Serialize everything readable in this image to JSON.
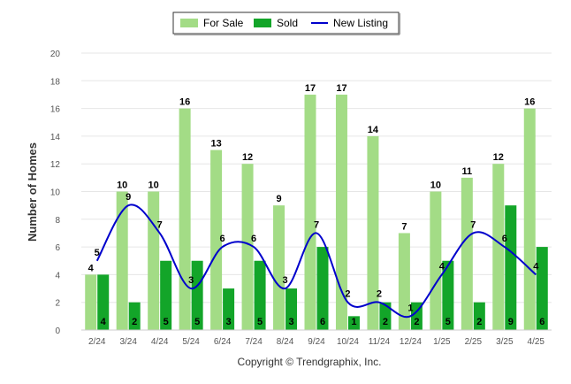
{
  "chart_data": {
    "type": "bar",
    "categories": [
      "2/24",
      "3/24",
      "4/24",
      "5/24",
      "6/24",
      "7/24",
      "8/24",
      "9/24",
      "10/24",
      "11/24",
      "12/24",
      "1/25",
      "2/25",
      "3/25",
      "4/25"
    ],
    "series": [
      {
        "name": "For Sale",
        "kind": "bar",
        "color": "#a3dc86",
        "values": [
          4,
          10,
          10,
          16,
          13,
          12,
          9,
          17,
          17,
          14,
          7,
          10,
          11,
          12,
          16
        ]
      },
      {
        "name": "Sold",
        "kind": "bar",
        "color": "#13a529",
        "values": [
          4,
          2,
          5,
          5,
          3,
          5,
          3,
          6,
          1,
          2,
          2,
          5,
          2,
          9,
          6
        ]
      },
      {
        "name": "New Listing",
        "kind": "line",
        "color": "#0000cc",
        "values": [
          5,
          9,
          7,
          3,
          6,
          6,
          3,
          7,
          2,
          2,
          1,
          4,
          7,
          6,
          4
        ]
      }
    ],
    "ylabel": "Number of Homes",
    "ylim": [
      0,
      20
    ],
    "yticks": [
      0,
      2,
      4,
      6,
      8,
      10,
      12,
      14,
      16,
      18,
      20
    ],
    "grid": true,
    "legend_position": "top-center"
  },
  "footer": {
    "copyright": "Copyright © Trendgraphix, Inc."
  }
}
